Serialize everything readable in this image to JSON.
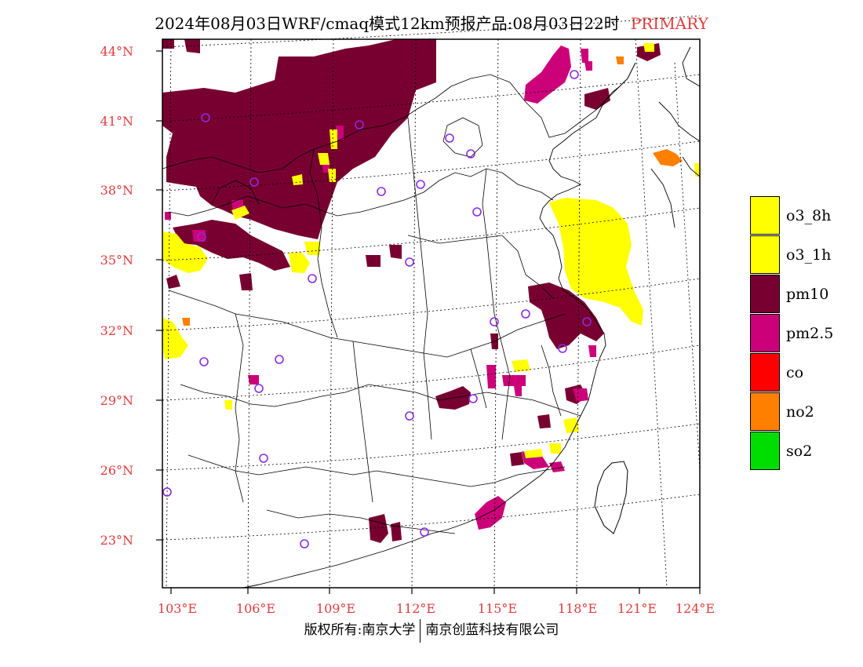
{
  "title": {
    "main": "2024年08月03日WRF/cmaq模式12km预报产品:08月03日22时",
    "tag": "PRIMARY"
  },
  "colors": {
    "o3_8h": "#ffff00",
    "o3_1h": "#ffff00",
    "pm10": "#780030",
    "pm25": "#cc0078",
    "co": "#ff0000",
    "no2": "#ff7f00",
    "so2": "#00dd00",
    "axis_label": "#e03c3c",
    "station": "#8a2be2"
  },
  "axes": {
    "lat_labels": [
      "44°N",
      "41°N",
      "38°N",
      "35°N",
      "32°N",
      "29°N",
      "26°N",
      "23°N"
    ],
    "lon_labels": [
      "103°E",
      "106°E",
      "109°E",
      "112°E",
      "115°E",
      "118°E",
      "121°E",
      "124°E"
    ]
  },
  "legend": [
    {
      "label": "o3_8h"
    },
    {
      "label": "o3_1h"
    },
    {
      "label": "pm10"
    },
    {
      "label": "pm2.5"
    },
    {
      "label": "co"
    },
    {
      "label": "no2"
    },
    {
      "label": "so2"
    }
  ],
  "copyright": {
    "left": "版权所有:南京大学",
    "right": "南京创蓝科技有限公司"
  }
}
